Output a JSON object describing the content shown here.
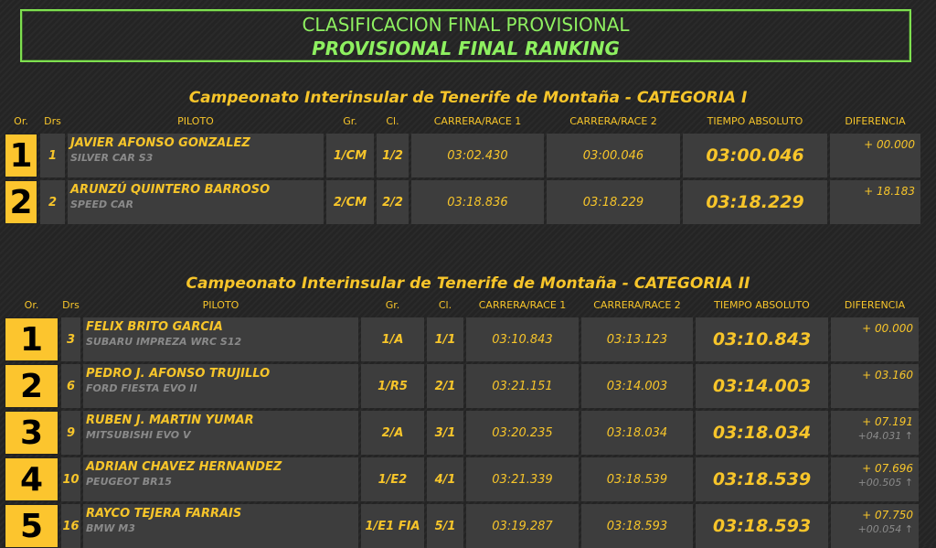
{
  "title": {
    "line1": "CLASIFICACION FINAL PROVISIONAL",
    "line2": "PROVISIONAL FINAL RANKING"
  },
  "columns": [
    "Or.",
    "Drs",
    "PILOTO",
    "Gr.",
    "Cl.",
    "CARRERA/RACE 1",
    "CARRERA/RACE 2",
    "TIEMPO ABSOLUTO",
    "DIFERENCIA"
  ],
  "colors": {
    "accent": "#f7c52a",
    "title": "#8ef060",
    "cell": "#3d3d3d"
  },
  "categories": [
    {
      "title": "Campeonato Interinsular de Tenerife de Montaña - CATEGORIA I",
      "rows": [
        {
          "pos": "1",
          "drs": "1",
          "name": "JAVIER AFONSO GONZALEZ",
          "car": "SILVER CAR S3",
          "gr": "1/CM",
          "cl": "1/2",
          "race1": "03:02.430",
          "race2": "03:00.046",
          "abs": "03:00.046",
          "diff": "+ 00.000",
          "diff_prev": ""
        },
        {
          "pos": "2",
          "drs": "2",
          "name": "ARUNZÚ QUINTERO BARROSO",
          "car": "SPEED CAR",
          "gr": "2/CM",
          "cl": "2/2",
          "race1": "03:18.836",
          "race2": "03:18.229",
          "abs": "03:18.229",
          "diff": "+ 18.183",
          "diff_prev": ""
        }
      ]
    },
    {
      "title": "Campeonato Interinsular de Tenerife de Montaña - CATEGORIA II",
      "rows": [
        {
          "pos": "1",
          "drs": "3",
          "name": "FELIX BRITO GARCIA",
          "car": "SUBARU IMPREZA WRC S12",
          "gr": "1/A",
          "cl": "1/1",
          "race1": "03:10.843",
          "race2": "03:13.123",
          "abs": "03:10.843",
          "diff": "+ 00.000",
          "diff_prev": ""
        },
        {
          "pos": "2",
          "drs": "6",
          "name": "PEDRO J. AFONSO TRUJILLO",
          "car": "FORD FIESTA EVO II",
          "gr": "1/R5",
          "cl": "2/1",
          "race1": "03:21.151",
          "race2": "03:14.003",
          "abs": "03:14.003",
          "diff": "+ 03.160",
          "diff_prev": ""
        },
        {
          "pos": "3",
          "drs": "9",
          "name": "RUBEN J. MARTIN YUMAR",
          "car": "MITSUBISHI EVO V",
          "gr": "2/A",
          "cl": "3/1",
          "race1": "03:20.235",
          "race2": "03:18.034",
          "abs": "03:18.034",
          "diff": "+ 07.191",
          "diff_prev": "+04.031 ↑"
        },
        {
          "pos": "4",
          "drs": "10",
          "name": "ADRIAN CHAVEZ HERNANDEZ",
          "car": "PEUGEOT BR15",
          "gr": "1/E2",
          "cl": "4/1",
          "race1": "03:21.339",
          "race2": "03:18.539",
          "abs": "03:18.539",
          "diff": "+ 07.696",
          "diff_prev": "+00.505 ↑"
        },
        {
          "pos": "5",
          "drs": "16",
          "name": "RAYCO TEJERA FARRAIS",
          "car": "BMW M3",
          "gr": "1/E1 FIA",
          "cl": "5/1",
          "race1": "03:19.287",
          "race2": "03:18.593",
          "abs": "03:18.593",
          "diff": "+ 07.750",
          "diff_prev": "+00.054 ↑"
        }
      ]
    }
  ]
}
